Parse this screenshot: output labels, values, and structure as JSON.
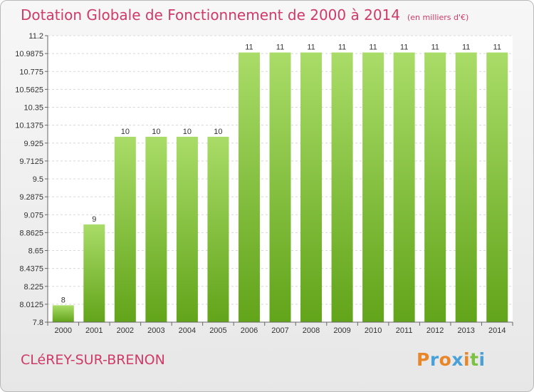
{
  "title": "Dotation Globale de Fonctionnement de 2000 à 2014",
  "unit": "(en milliers d'€)",
  "commune": "CLéREY-SUR-BRENON",
  "logo": {
    "letters": [
      "P",
      "r",
      "o",
      "x",
      "i",
      "t",
      "i"
    ],
    "colors": [
      "#e8862a",
      "#4aa0d8",
      "#e8862a",
      "#4aa0d8",
      "#e8862a",
      "#7cc242",
      "#4aa0d8"
    ]
  },
  "colors": {
    "bar_light": "#a9dc68",
    "bar_dark": "#62a41a",
    "title": "#cf3a68"
  },
  "chart_data": {
    "type": "bar",
    "categories": [
      "2000",
      "2001",
      "2002",
      "2003",
      "2004",
      "2005",
      "2006",
      "2007",
      "2008",
      "2009",
      "2010",
      "2011",
      "2012",
      "2013",
      "2014"
    ],
    "values": [
      8,
      9,
      10,
      10,
      10,
      10,
      11,
      11,
      11,
      11,
      11,
      11,
      11,
      11,
      11
    ],
    "bar_tops": [
      8.0,
      8.96,
      10.0,
      10.0,
      10.0,
      10.0,
      11.0,
      11.0,
      11.0,
      11.0,
      11.0,
      11.0,
      11.0,
      11.0,
      11.0
    ],
    "data_labels": [
      "8",
      "9",
      "10",
      "10",
      "10",
      "10",
      "11",
      "11",
      "11",
      "11",
      "11",
      "11",
      "11",
      "11",
      "11"
    ],
    "yticks": [
      7.8,
      8.0125,
      8.225,
      8.4375,
      8.65,
      8.8625,
      9.075,
      9.2875,
      9.5,
      9.7125,
      9.925,
      10.1375,
      10.35,
      10.5625,
      10.775,
      10.9875,
      11.2
    ],
    "ytick_labels": [
      "7.8",
      "8.0125",
      "8.225",
      "8.4375",
      "8.65",
      "8.8625",
      "9.075",
      "9.2875",
      "9.5",
      "9.7125",
      "9.925",
      "10.1375",
      "10.35",
      "10.5625",
      "10.775",
      "10.9875",
      "11.2"
    ],
    "ylim": [
      7.8,
      11.2
    ],
    "grid": true,
    "title": "Dotation Globale de Fonctionnement de 2000 à 2014",
    "xlabel": "",
    "ylabel": ""
  }
}
